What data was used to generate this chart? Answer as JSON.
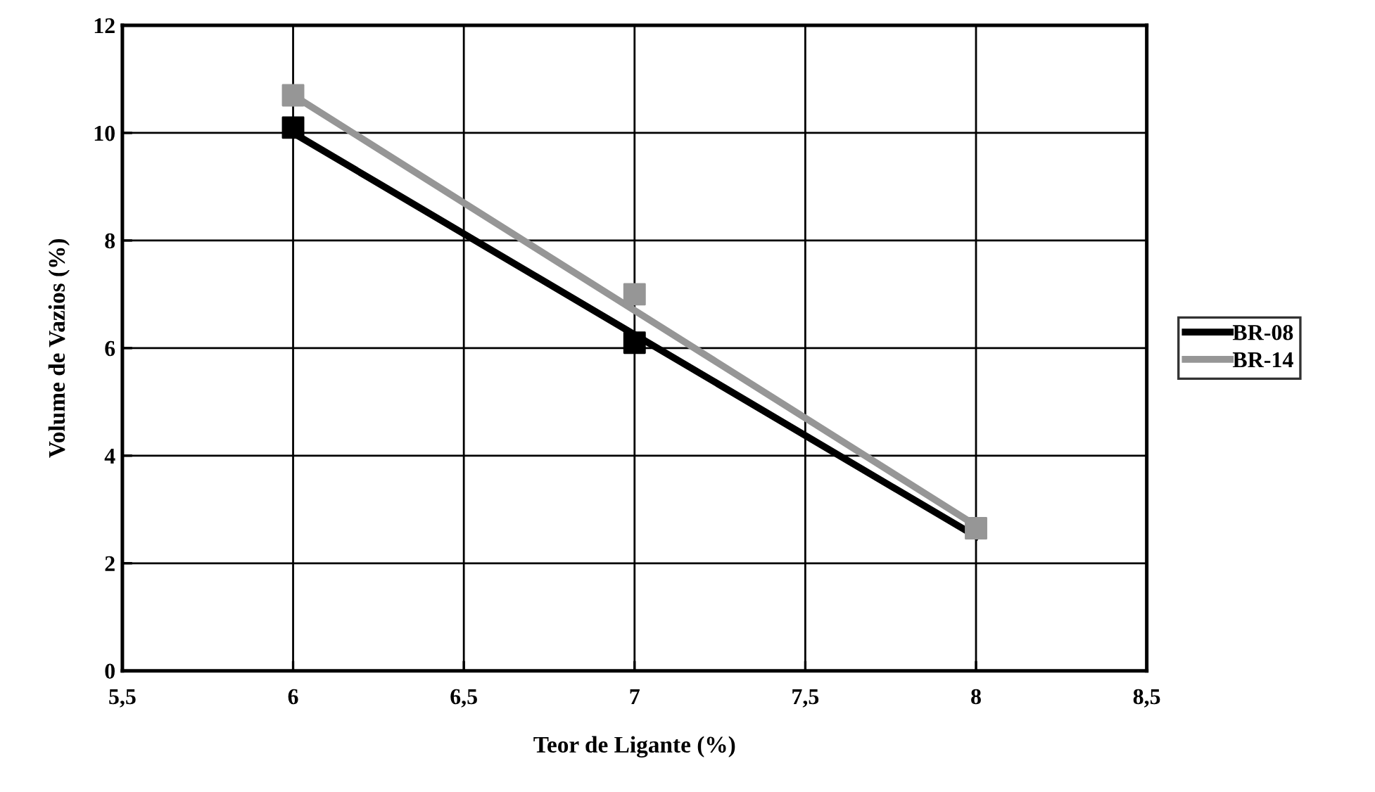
{
  "chart_data": {
    "type": "scatter",
    "xlabel": "Teor de Ligante (%)",
    "ylabel": "Volume de Vazios (%)",
    "x": [
      6,
      7,
      8
    ],
    "series": [
      {
        "type": "line",
        "name": "BR-08",
        "color": "#000000",
        "values": [
          10.0,
          6.25,
          2.5
        ],
        "marker": "none"
      },
      {
        "type": "line",
        "name": "BR-14",
        "color": "#969696",
        "values": [
          10.7,
          6.7,
          2.7
        ],
        "marker": "none"
      },
      {
        "color": "#000000",
        "values": [
          10.1,
          6.1,
          null
        ],
        "marker": "square"
      },
      {
        "color": "#969696",
        "values": [
          10.7,
          7.0,
          2.65
        ],
        "marker": "square"
      }
    ],
    "xlim": [
      5.5,
      8.5
    ],
    "xticks": [
      {
        "value": 5.5,
        "label": "5,5"
      },
      6,
      {
        "value": 6.5,
        "label": "6,5"
      },
      7,
      {
        "value": 7.5,
        "label": "7,5"
      },
      8,
      {
        "value": 8.5,
        "label": "8,5"
      }
    ],
    "ylim": [
      0,
      12
    ],
    "yticks": [
      0,
      2,
      4,
      6,
      8,
      10,
      12
    ],
    "grid": true,
    "legend": "right"
  }
}
